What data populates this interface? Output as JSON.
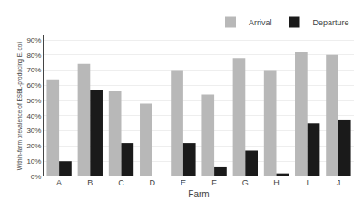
{
  "chart_data": {
    "type": "bar",
    "xlabel": "Farm",
    "ylabel": "Within-farm prevalence of ESBL-producing E. coli",
    "categories": [
      "A",
      "B",
      "C",
      "D",
      "E",
      "F",
      "G",
      "H",
      "I",
      "J"
    ],
    "series": [
      {
        "name": "Arrival",
        "color": "#b8b8b8",
        "values": [
          64,
          74,
          56,
          48,
          70,
          54,
          78,
          70,
          82,
          80
        ]
      },
      {
        "name": "Departure",
        "color": "#1a1a1a",
        "values": [
          10,
          57,
          22,
          0,
          22,
          6,
          17,
          2,
          35,
          37
        ]
      }
    ],
    "ylim": [
      0,
      93
    ],
    "yticks": [
      {
        "value": 0,
        "label": "0%"
      },
      {
        "value": 10,
        "label": "10%"
      },
      {
        "value": 20,
        "label": "20%"
      },
      {
        "value": 30,
        "label": "30%"
      },
      {
        "value": 40,
        "label": "40%"
      },
      {
        "value": 50,
        "label": "50%"
      },
      {
        "value": 60,
        "label": "60%"
      },
      {
        "value": 70,
        "label": "70%"
      },
      {
        "value": 80,
        "label": "80%"
      },
      {
        "value": 90,
        "label": "90%"
      }
    ],
    "grid": true,
    "legend": "upper right"
  }
}
